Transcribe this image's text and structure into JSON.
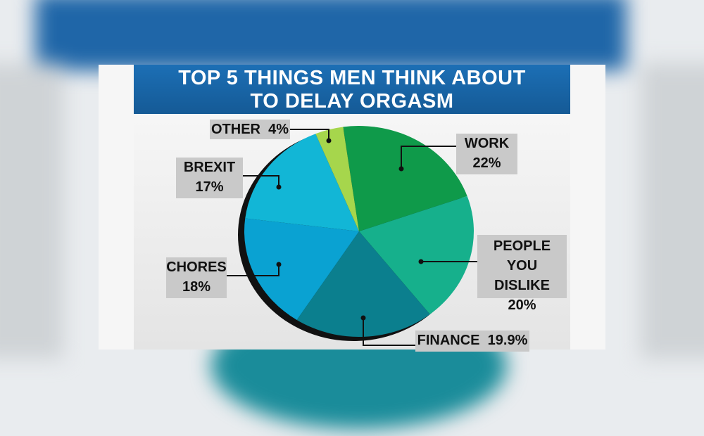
{
  "chart_data": {
    "type": "pie",
    "title": [
      "TOP 5 THINGS MEN THINK ABOUT",
      "TO DELAY ORGASM"
    ],
    "slices": [
      {
        "label": "WORK",
        "value": 22,
        "value_label": "22%",
        "color": "#0f9a4a"
      },
      {
        "label": "PEOPLE YOU DISLIKE",
        "value": 20,
        "value_label": "20%",
        "color": "#16b08c"
      },
      {
        "label": "FINANCE",
        "value": 19.9,
        "value_label": "19.9%",
        "color": "#0b7f8e"
      },
      {
        "label": "CHORES",
        "value": 18,
        "value_label": "18%",
        "color": "#0aa2d2"
      },
      {
        "label": "BREXIT",
        "value": 17,
        "value_label": "17%",
        "color": "#12b6d6"
      },
      {
        "label": "OTHER",
        "value": 4,
        "value_label": "4%",
        "color": "#a6d64c"
      }
    ]
  }
}
